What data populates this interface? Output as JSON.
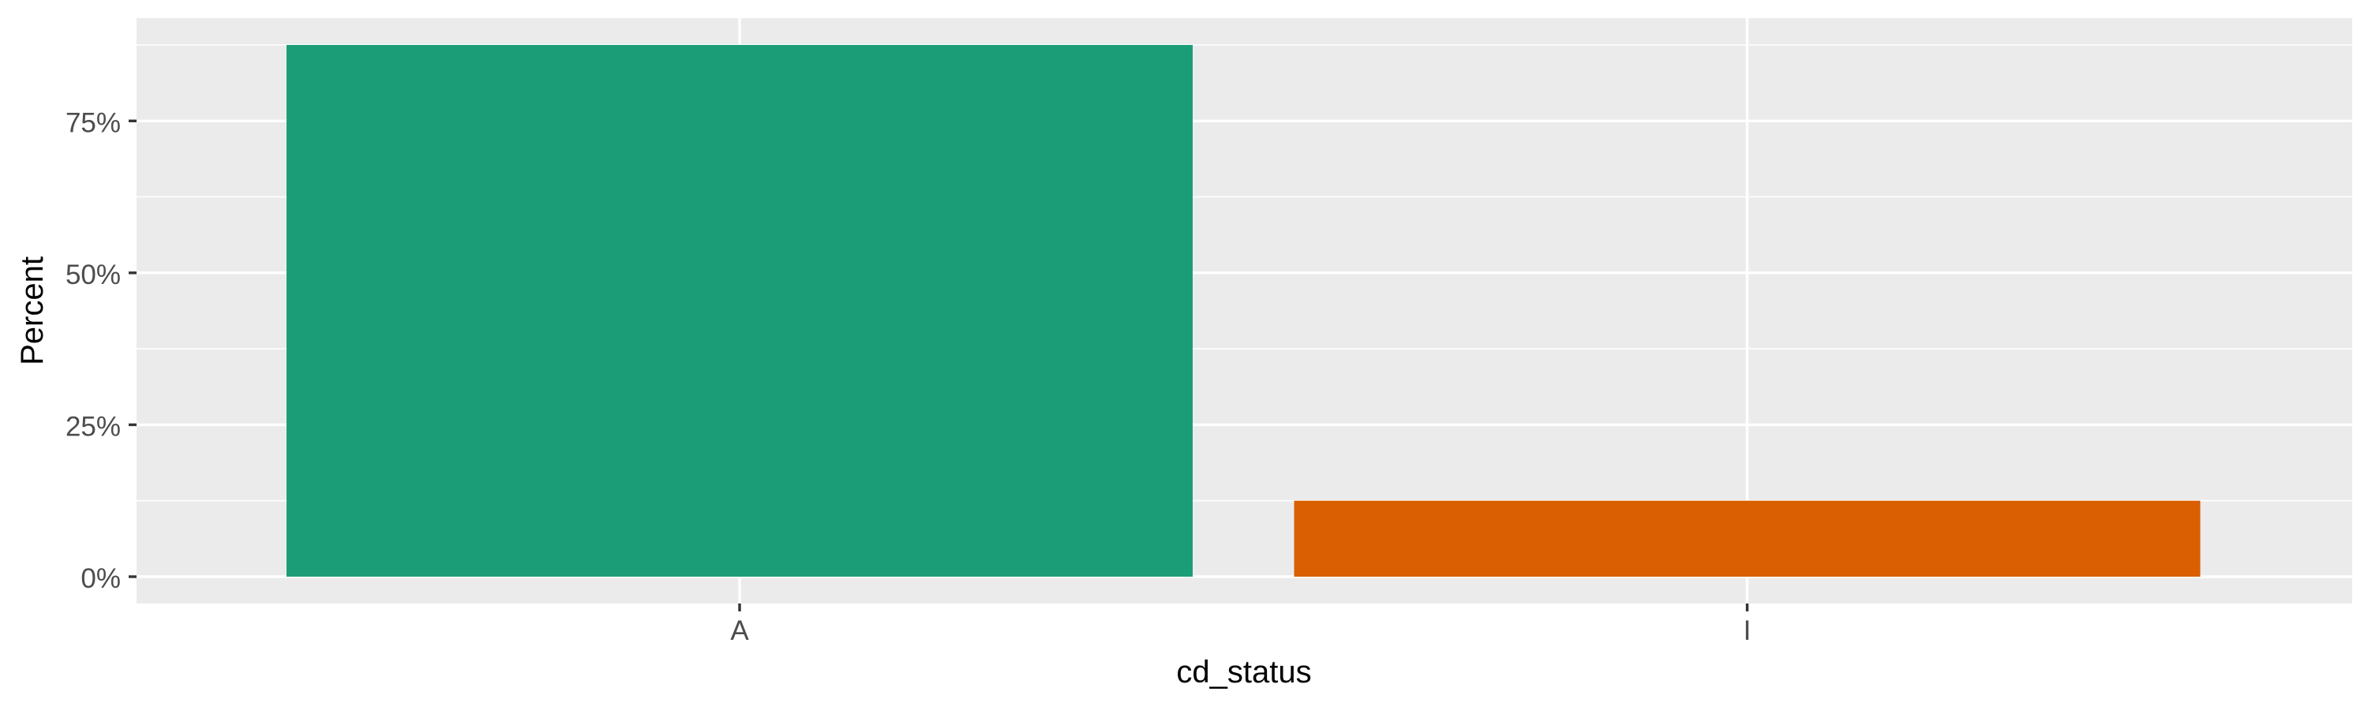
{
  "chart_data": {
    "type": "bar",
    "categories": [
      "A",
      "I"
    ],
    "values": [
      87.5,
      12.5
    ],
    "colors": [
      "#1B9E77",
      "#D95F02"
    ],
    "xlabel": "cd_status",
    "ylabel": "Percent",
    "yticks": [
      0,
      25,
      50,
      75
    ],
    "ytick_labels": [
      "0%",
      "25%",
      "50%",
      "75%"
    ],
    "ylim": [
      0,
      91.9
    ],
    "grid": true,
    "legend": "none",
    "panel_background": "#EBEBEB",
    "gridline_color": "#FFFFFF"
  }
}
